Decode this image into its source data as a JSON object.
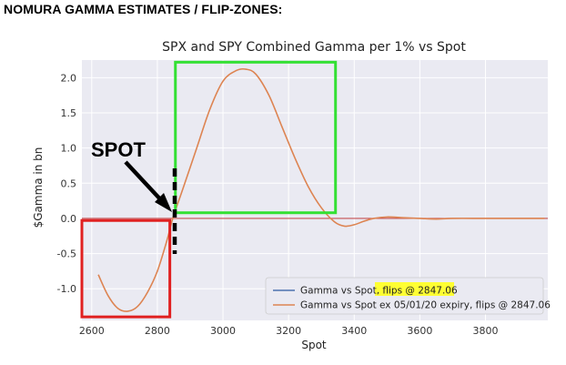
{
  "header": {
    "title": "NOMURA GAMMA ESTIMATES / FLIP-ZONES:"
  },
  "annotations": {
    "spot_label": "SPOT"
  },
  "colors": {
    "plot_bg": "#eaeaf2",
    "grid": "#ffffff",
    "series_blue": "#4c72b0",
    "series_orange": "#dd8452",
    "zero_line": "#c44e52",
    "box_red": "#e02020",
    "box_green": "#33e033",
    "highlight": "#ffff33"
  },
  "chart_data": {
    "type": "line",
    "title": "SPX and SPY Combined Gamma per 1% vs Spot",
    "xlabel": "Spot",
    "ylabel": "$Gamma in bn",
    "xlim": [
      2570,
      3990
    ],
    "ylim": [
      -1.45,
      2.25
    ],
    "xticks": [
      "2600",
      "2800",
      "3000",
      "3200",
      "3400",
      "3600",
      "3800"
    ],
    "yticks": [
      "2.0",
      "1.5",
      "1.0",
      "0.5",
      "0.0",
      "-0.5",
      "-1.0"
    ],
    "grid": true,
    "legend_position": "lower-right",
    "series": [
      {
        "name": "Gamma vs Spot, flips @ 2847.06",
        "name_parts": [
          "Gamma vs Spot, ",
          "flips @ 2847.06"
        ],
        "x": [],
        "y": []
      },
      {
        "name": "Gamma vs Spot ex 05/01/20 expiry, flips @ 2847.06",
        "x": [
          2620,
          2650,
          2680,
          2710,
          2740,
          2770,
          2800,
          2830,
          2847,
          2880,
          2920,
          2960,
          3000,
          3040,
          3070,
          3100,
          3140,
          3180,
          3220,
          3260,
          3300,
          3340,
          3370,
          3400,
          3430,
          3460,
          3500,
          3550,
          3600,
          3650,
          3700,
          3800,
          3900,
          3980
        ],
        "y": [
          -0.8,
          -1.1,
          -1.28,
          -1.32,
          -1.25,
          -1.05,
          -0.75,
          -0.3,
          0.0,
          0.45,
          1.0,
          1.55,
          1.95,
          2.1,
          2.12,
          2.05,
          1.75,
          1.3,
          0.85,
          0.45,
          0.15,
          -0.05,
          -0.11,
          -0.09,
          -0.04,
          0.0,
          0.02,
          0.01,
          0.0,
          -0.01,
          0.0,
          0.0,
          0.0,
          0.0
        ]
      }
    ],
    "zero_line_y": 0.0,
    "boxes": [
      {
        "color": "red",
        "x0": 2570,
        "x1": 2838,
        "y0": -1.4,
        "y1": -0.03
      },
      {
        "color": "green",
        "x0": 2855,
        "x1": 3343,
        "y0": 0.08,
        "y1": 2.22
      }
    ]
  }
}
